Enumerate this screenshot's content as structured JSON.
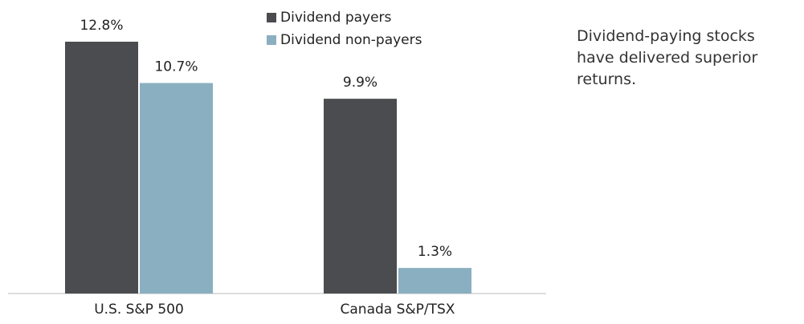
{
  "chart_data": {
    "type": "bar",
    "categories": [
      "U.S. S&P 500",
      "Canada S&P/TSX"
    ],
    "series": [
      {
        "name": "Dividend payers",
        "color": "#4a4c50",
        "values": [
          12.8,
          9.9
        ],
        "value_labels": [
          "12.8%",
          "9.9%"
        ]
      },
      {
        "name": "Dividend non-payers",
        "color": "#8aafc0",
        "values": [
          10.7,
          1.3
        ],
        "value_labels": [
          "10.7%",
          "1.3%"
        ]
      }
    ],
    "annotation": "Dividend-paying stocks have delivered superior returns."
  }
}
